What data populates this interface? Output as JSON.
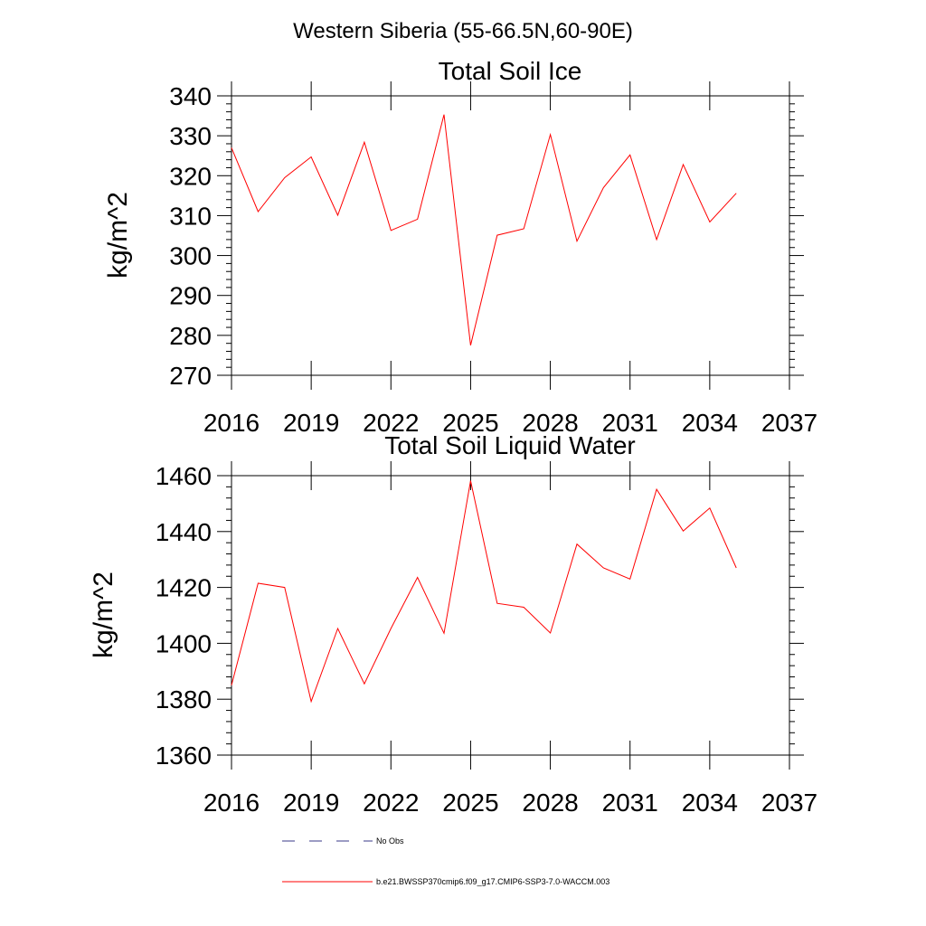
{
  "figure": {
    "suptitle": "Western Siberia (55-66.5N,60-90E)",
    "line_color": "#ff0000",
    "obs_color": "#3a3a8a"
  },
  "legend": {
    "entries": [
      {
        "label": "No Obs",
        "style": "dashed",
        "color": "#3a3a8a"
      },
      {
        "label": "b.e21.BWSSP370cmip6.f09_g17.CMIP6-SSP3-7.0-WACCM.003",
        "style": "solid",
        "color": "#ff0000"
      }
    ]
  },
  "chart_data": [
    {
      "type": "line",
      "title": "Total Soil Ice",
      "xlabel": "",
      "ylabel": "kg/m^2",
      "xlim": [
        2016,
        2037
      ],
      "ylim": [
        270,
        340
      ],
      "xticks": [
        2016,
        2019,
        2022,
        2025,
        2028,
        2031,
        2034,
        2037
      ],
      "yticks": [
        270,
        280,
        290,
        300,
        310,
        320,
        330,
        340
      ],
      "grid": false,
      "x": [
        2016,
        2017,
        2018,
        2019,
        2020,
        2021,
        2022,
        2023,
        2024,
        2025,
        2026,
        2027,
        2028,
        2029,
        2030,
        2031,
        2032,
        2033,
        2034,
        2035
      ],
      "series": [
        {
          "values": [
            327.0,
            311.0,
            319.5,
            324.7,
            310.1,
            328.4,
            306.3,
            309.1,
            335.3,
            277.5,
            305.1,
            306.7,
            330.3,
            303.6,
            317.0,
            325.2,
            304.0,
            322.8,
            308.4,
            315.6
          ]
        }
      ]
    },
    {
      "type": "line",
      "title": "Total Soil Liquid Water",
      "xlabel": "",
      "ylabel": "kg/m^2",
      "xlim": [
        2016,
        2037
      ],
      "ylim": [
        1360,
        1460
      ],
      "xticks": [
        2016,
        2019,
        2022,
        2025,
        2028,
        2031,
        2034,
        2037
      ],
      "yticks": [
        1360,
        1380,
        1400,
        1420,
        1440,
        1460
      ],
      "grid": false,
      "x": [
        2016,
        2017,
        2018,
        2019,
        2020,
        2021,
        2022,
        2023,
        2024,
        2025,
        2026,
        2027,
        2028,
        2029,
        2030,
        2031,
        2032,
        2033,
        2034,
        2035
      ],
      "series": [
        {
          "values": [
            1385.0,
            1421.5,
            1420.0,
            1379.2,
            1405.3,
            1385.5,
            1405.3,
            1423.6,
            1403.6,
            1458.2,
            1414.3,
            1412.9,
            1403.7,
            1435.5,
            1427.0,
            1423.0,
            1455.1,
            1440.2,
            1448.4,
            1427.0
          ]
        }
      ]
    }
  ]
}
